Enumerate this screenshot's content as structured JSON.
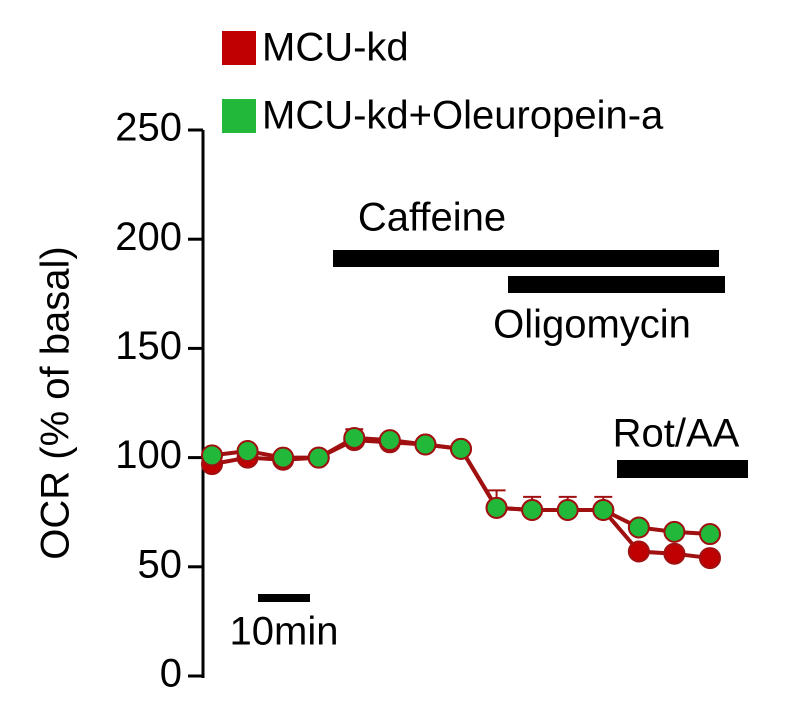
{
  "chart_data": {
    "type": "line",
    "ylabel": "OCR (% of basal)",
    "categories": [
      null,
      null,
      null,
      null,
      null,
      null,
      null,
      null,
      null,
      null,
      null,
      null,
      null,
      null,
      null
    ],
    "ylim": [
      0,
      250
    ],
    "yticks": [
      0,
      50,
      100,
      150,
      200,
      250
    ],
    "line_color": "#a01010",
    "series": [
      {
        "name": "MCU-kd",
        "color": "#c00000",
        "values": [
          97,
          100,
          99,
          100,
          108,
          107,
          106,
          104,
          77,
          76,
          76,
          76,
          57,
          56,
          54
        ],
        "errors": [
          2,
          2,
          2,
          2,
          5,
          3,
          2,
          2,
          8,
          6,
          6,
          6,
          2,
          2,
          2
        ]
      },
      {
        "name": "MCU-kd+Oleuropein-a",
        "color": "#22b83a",
        "values": [
          101,
          103,
          100,
          100,
          109,
          108,
          106,
          104,
          77,
          76,
          76,
          76,
          68,
          66,
          65
        ]
      }
    ],
    "annotations": [
      "Caffeine",
      "Oligomycin",
      "Rot/AA"
    ],
    "scale_bar": "10min",
    "legend": "top-left"
  }
}
